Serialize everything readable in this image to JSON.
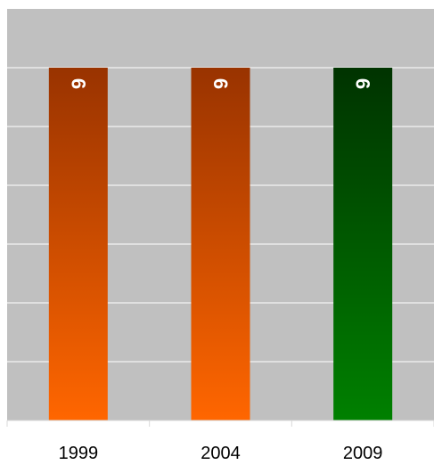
{
  "chart_data": {
    "type": "bar",
    "categories": [
      "1999",
      "2004",
      "2009"
    ],
    "values": [
      6,
      6,
      6
    ],
    "data_labels": [
      "6",
      "6",
      "6"
    ],
    "bar_colors": [
      {
        "top": "#993300",
        "bottom": "#ff6600"
      },
      {
        "top": "#993300",
        "bottom": "#ff6600"
      },
      {
        "top": "#003300",
        "bottom": "#008000"
      }
    ],
    "ylim": [
      0,
      7
    ],
    "y_gridline_step": 1,
    "grid": true,
    "plot_background": "#c0c0c0",
    "gridline_color": "#ffffff",
    "legend": "none",
    "title": "",
    "xlabel": "",
    "ylabel": ""
  }
}
